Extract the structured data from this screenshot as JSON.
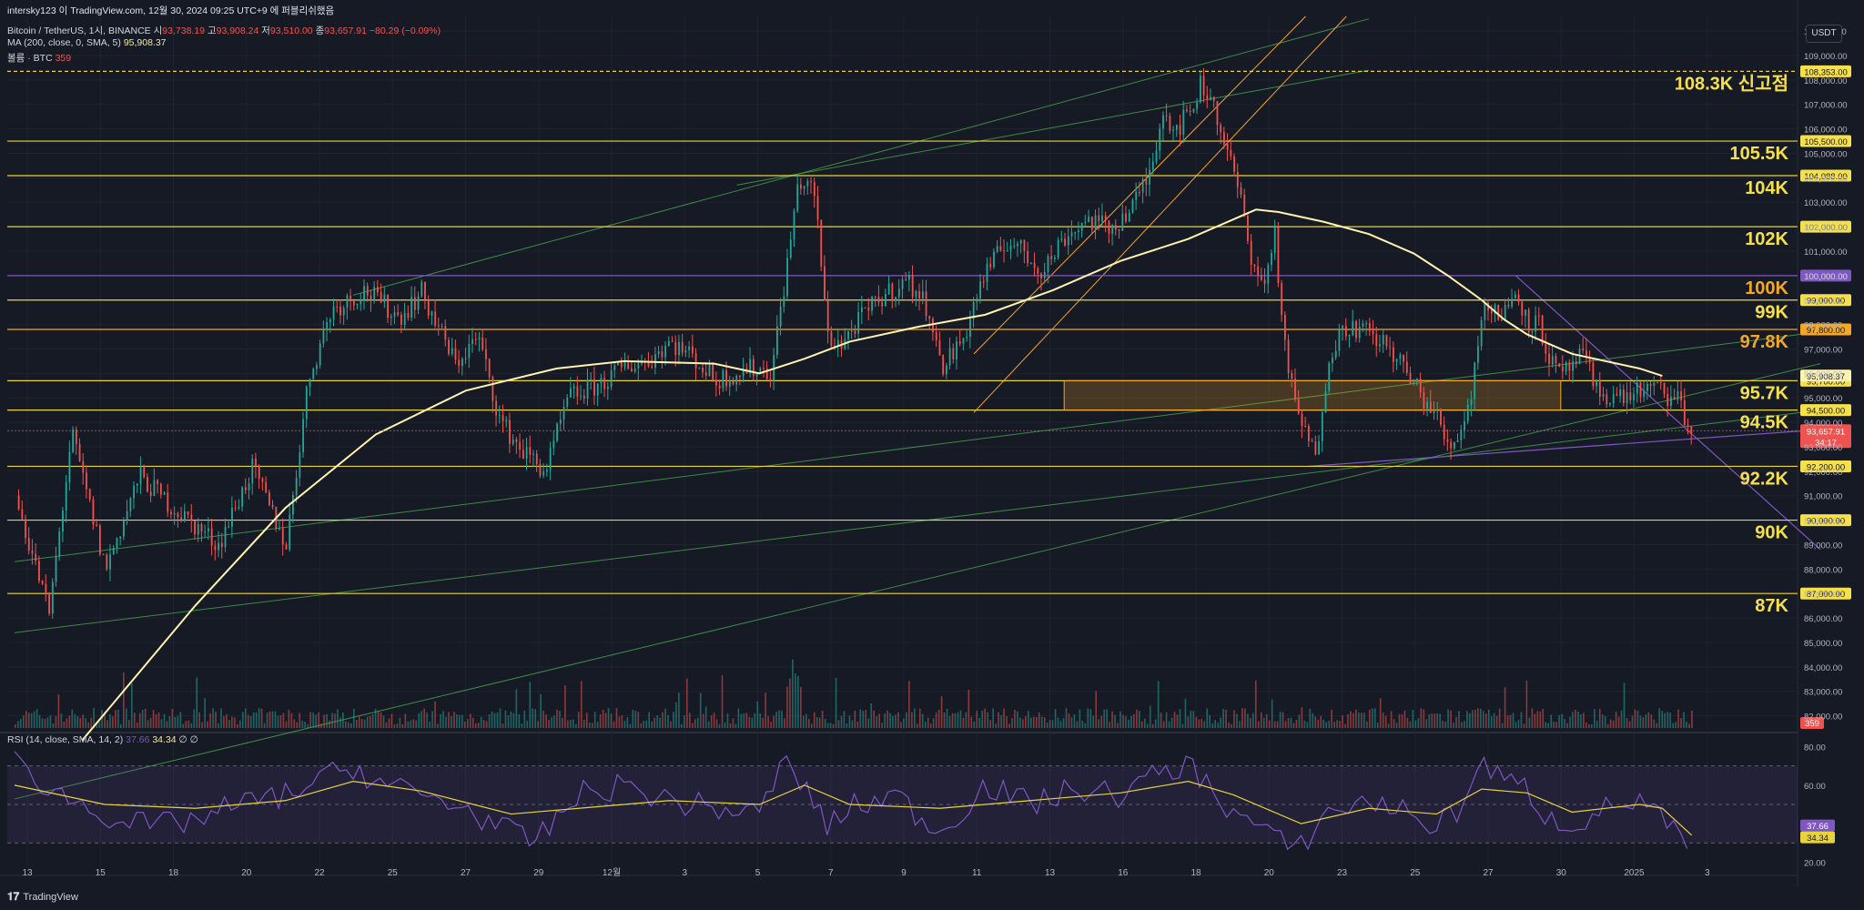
{
  "header": {
    "published": "intersky123 이 TradingView.com, 12월 30, 2024 09:25 UTC+9 에 퍼블리쉬했음"
  },
  "legend": {
    "symbol": "Bitcoin / TetherUS, 1시, BINANCE",
    "open_label": "시",
    "open": "93,738.19",
    "high_label": "고",
    "high": "93,908.24",
    "low_label": "저",
    "low": "93,510.00",
    "close_label": "종",
    "close": "93,657.91",
    "change": "−80.29 (−0.09%)",
    "ma_label": "MA (200, close, 0, SMA, 5)",
    "ma_value": "95,908.37",
    "volume_label": "볼륨 · BTC",
    "volume_value": "359",
    "rsi_label": "RSI (14, close, SMA, 14, 2)",
    "rsi_value": "37.66",
    "rsi_ma_value": "34.34",
    "rsi_extra": "∅ ∅"
  },
  "currency": "USDT",
  "footer": {
    "brand": "TradingView"
  },
  "colors": {
    "background": "#161a25",
    "level_line": "#e8d43a",
    "level_text": "#f5e04a",
    "purple": "#7e57c2",
    "orange": "#f5a623",
    "green_channel": "#4caf50",
    "ma_line": "#fff3b0",
    "up": "#26a69a",
    "down": "#ef5350",
    "rsi_line": "#7e57c2",
    "rsi_ma": "#e8d43a"
  },
  "chart_data": {
    "type": "candlestick",
    "price_range": [
      81500,
      110600
    ],
    "price_axis_ticks": [
      "110,000.00",
      "109,000.00",
      "108,000.00",
      "107,000.00",
      "106,000.00",
      "105,000.00",
      "104,000.00",
      "103,000.00",
      "102,000.00",
      "101,000.00",
      "100,000.00",
      "99,000.00",
      "98,000.00",
      "97,000.00",
      "96,000.00",
      "95,000.00",
      "94,000.00",
      "93,000.00",
      "92,000.00",
      "91,000.00",
      "90,000.00",
      "89,000.00",
      "88,000.00",
      "87,000.00",
      "86,000.00",
      "85,000.00",
      "84,000.00",
      "83,000.00",
      "82,000.00"
    ],
    "time_axis_labels": [
      "13",
      "15",
      "18",
      "20",
      "22",
      "25",
      "27",
      "29",
      "12월",
      "3",
      "5",
      "7",
      "9",
      "11",
      "13",
      "16",
      "18",
      "20",
      "23",
      "25",
      "27",
      "30",
      "2025",
      "3"
    ],
    "levels": [
      {
        "price": 108353,
        "label": "108.3K 신고점",
        "badge": "108,353.00",
        "color": "#f5e04a",
        "dashed": true
      },
      {
        "price": 105500,
        "label": "105.5K",
        "badge": "105,500.00",
        "color": "#f5e04a"
      },
      {
        "price": 104088,
        "label": "104K",
        "badge": "104,088.00",
        "color": "#f5e04a"
      },
      {
        "price": 102000,
        "label": "102K",
        "badge": "102,000.00",
        "color": "#f5e04a"
      },
      {
        "price": 100000,
        "label": "100K",
        "badge": "100,000.00",
        "color": "#f5a623",
        "line_color": "#7e57c2",
        "badge_bg": "#7e57c2"
      },
      {
        "price": 99000,
        "label": "99K",
        "badge": "99,000.00",
        "color": "#f5e04a"
      },
      {
        "price": 97800,
        "label": "97.8K",
        "badge": "97,800.00",
        "color": "#f5a623",
        "line_color": "#f5a623",
        "badge_bg": "#f5a623"
      },
      {
        "price": 95700,
        "label": "95.7K",
        "badge": "95,700.00",
        "color": "#f5e04a"
      },
      {
        "price": 94500,
        "label": "94.5K",
        "badge": "94,500.00",
        "color": "#f5e04a"
      },
      {
        "price": 92200,
        "label": "92.2K",
        "badge": "92,200.00",
        "color": "#f5e04a"
      },
      {
        "price": 90000,
        "label": "90K",
        "badge": "90,000.00",
        "color": "#f5e04a"
      },
      {
        "price": 87000,
        "label": "87K",
        "badge": "87,000.00",
        "color": "#f5e04a"
      }
    ],
    "ma_badge": "95,908.37",
    "last_price_badge": "93,657.91",
    "countdown": "34:17",
    "volume_badge": "359",
    "rsi_axis_ticks": [
      "80.00",
      "60.00",
      "40.00",
      "20.00"
    ],
    "rsi_range": [
      15,
      85
    ],
    "rsi_badges": [
      "37.66",
      "34.34"
    ],
    "candle_path": [
      [
        0,
        91000
      ],
      [
        1.5,
        86200
      ],
      [
        2.5,
        93500
      ],
      [
        4,
        88000
      ],
      [
        5.5,
        91800
      ],
      [
        7,
        90500
      ],
      [
        9,
        89000
      ],
      [
        10.5,
        92100
      ],
      [
        12,
        89000
      ],
      [
        13,
        95800
      ],
      [
        14,
        98600
      ],
      [
        15.5,
        99400
      ],
      [
        17,
        98300
      ],
      [
        18,
        99300
      ],
      [
        19.5,
        96400
      ],
      [
        20.5,
        97500
      ],
      [
        21.5,
        94000
      ],
      [
        22.5,
        92800
      ],
      [
        23.5,
        92000
      ],
      [
        24.5,
        95000
      ],
      [
        26,
        95600
      ],
      [
        27,
        96300
      ],
      [
        28,
        96500
      ],
      [
        29,
        97300
      ],
      [
        30,
        96700
      ],
      [
        31,
        95700
      ],
      [
        32.5,
        96200
      ],
      [
        33.5,
        96100
      ],
      [
        34.2,
        100500
      ],
      [
        34.7,
        103900
      ],
      [
        35.4,
        103400
      ],
      [
        36,
        97500
      ],
      [
        36.6,
        97200
      ],
      [
        37.5,
        98300
      ],
      [
        38.5,
        99200
      ],
      [
        39.5,
        99800
      ],
      [
        40.5,
        98600
      ],
      [
        41,
        96200
      ],
      [
        42,
        97400
      ],
      [
        42.8,
        99800
      ],
      [
        44,
        101500
      ],
      [
        45.5,
        100200
      ],
      [
        46.5,
        101600
      ],
      [
        47.5,
        102300
      ],
      [
        48.5,
        101900
      ],
      [
        49.5,
        102800
      ],
      [
        50.3,
        104300
      ],
      [
        50.8,
        106800
      ],
      [
        51.4,
        106000
      ],
      [
        52,
        106600
      ],
      [
        52.5,
        107800
      ],
      [
        53,
        107300
      ],
      [
        53.6,
        105300
      ],
      [
        54.2,
        103500
      ],
      [
        54.7,
        101000
      ],
      [
        55.3,
        99400
      ],
      [
        55.8,
        101800
      ],
      [
        56.2,
        97200
      ],
      [
        56.7,
        94700
      ],
      [
        57.2,
        93500
      ],
      [
        57.6,
        92500
      ],
      [
        58.2,
        96800
      ],
      [
        59,
        98000
      ],
      [
        60,
        97600
      ],
      [
        61,
        96900
      ],
      [
        62,
        95500
      ],
      [
        63,
        94200
      ],
      [
        63.5,
        92900
      ],
      [
        64,
        93700
      ],
      [
        64.5,
        95100
      ],
      [
        65,
        98900
      ],
      [
        65.5,
        98400
      ],
      [
        66,
        98600
      ],
      [
        66.5,
        99400
      ],
      [
        67,
        98100
      ],
      [
        67.5,
        98000
      ],
      [
        68,
        96500
      ],
      [
        68.5,
        95800
      ],
      [
        69,
        96400
      ],
      [
        69.5,
        96700
      ],
      [
        70,
        95300
      ],
      [
        71,
        95000
      ],
      [
        72,
        95300
      ],
      [
        73,
        95300
      ],
      [
        73.4,
        94800
      ],
      [
        73.8,
        95000
      ],
      [
        74,
        93900
      ],
      [
        74.3,
        93600
      ]
    ],
    "rsi_path": [
      [
        0,
        72
      ],
      [
        2,
        55
      ],
      [
        4,
        45
      ],
      [
        6,
        38
      ],
      [
        8,
        42
      ],
      [
        10,
        50
      ],
      [
        12,
        55
      ],
      [
        14,
        65
      ],
      [
        15,
        70
      ],
      [
        16,
        62
      ],
      [
        18,
        55
      ],
      [
        20,
        48
      ],
      [
        22,
        35
      ],
      [
        23,
        30
      ],
      [
        25,
        55
      ],
      [
        27,
        60
      ],
      [
        29,
        52
      ],
      [
        31,
        48
      ],
      [
        33,
        45
      ],
      [
        34,
        72
      ],
      [
        35,
        60
      ],
      [
        36,
        38
      ],
      [
        37,
        48
      ],
      [
        39,
        55
      ],
      [
        41,
        35
      ],
      [
        43,
        60
      ],
      [
        45,
        50
      ],
      [
        47,
        58
      ],
      [
        49,
        55
      ],
      [
        51,
        68
      ],
      [
        52,
        70
      ],
      [
        53,
        60
      ],
      [
        54,
        45
      ],
      [
        55,
        40
      ],
      [
        56,
        30
      ],
      [
        57,
        28
      ],
      [
        58,
        45
      ],
      [
        60,
        52
      ],
      [
        62,
        45
      ],
      [
        63,
        38
      ],
      [
        64,
        48
      ],
      [
        65,
        72
      ],
      [
        66,
        62
      ],
      [
        67,
        58
      ],
      [
        68,
        42
      ],
      [
        69,
        40
      ],
      [
        70,
        45
      ],
      [
        71,
        50
      ],
      [
        72,
        52
      ],
      [
        73,
        42
      ],
      [
        74,
        28
      ],
      [
        74.3,
        37
      ]
    ],
    "rsi_ma_path": [
      [
        0,
        60
      ],
      [
        4,
        50
      ],
      [
        8,
        48
      ],
      [
        12,
        52
      ],
      [
        15,
        62
      ],
      [
        18,
        57
      ],
      [
        22,
        45
      ],
      [
        25,
        48
      ],
      [
        29,
        52
      ],
      [
        33,
        50
      ],
      [
        35,
        60
      ],
      [
        37,
        50
      ],
      [
        41,
        48
      ],
      [
        45,
        52
      ],
      [
        49,
        56
      ],
      [
        52,
        62
      ],
      [
        54,
        55
      ],
      [
        57,
        40
      ],
      [
        60,
        48
      ],
      [
        63,
        45
      ],
      [
        65,
        58
      ],
      [
        67,
        56
      ],
      [
        69,
        46
      ],
      [
        72,
        50
      ],
      [
        73,
        48
      ],
      [
        74.3,
        34
      ]
    ],
    "ma_path": [
      [
        3,
        81000
      ],
      [
        8,
        86500
      ],
      [
        12,
        90500
      ],
      [
        16,
        93500
      ],
      [
        20,
        95300
      ],
      [
        24,
        96200
      ],
      [
        27,
        96500
      ],
      [
        31,
        96400
      ],
      [
        33,
        96000
      ],
      [
        35,
        96600
      ],
      [
        37,
        97300
      ],
      [
        40,
        97900
      ],
      [
        43,
        98400
      ],
      [
        46,
        99400
      ],
      [
        49,
        100600
      ],
      [
        52,
        101500
      ],
      [
        54,
        102300
      ],
      [
        55,
        102700
      ],
      [
        56,
        102600
      ],
      [
        58,
        102200
      ],
      [
        60,
        101700
      ],
      [
        62,
        100900
      ],
      [
        63.5,
        100000
      ],
      [
        65,
        99000
      ],
      [
        66,
        98200
      ],
      [
        67,
        97600
      ],
      [
        69,
        96800
      ],
      [
        71,
        96400
      ],
      [
        72,
        96200
      ],
      [
        73,
        95900
      ]
    ],
    "zone": {
      "price_top": 95700,
      "price_bottom": 94500,
      "x_from": 46.5,
      "x_to": 68.5
    }
  }
}
